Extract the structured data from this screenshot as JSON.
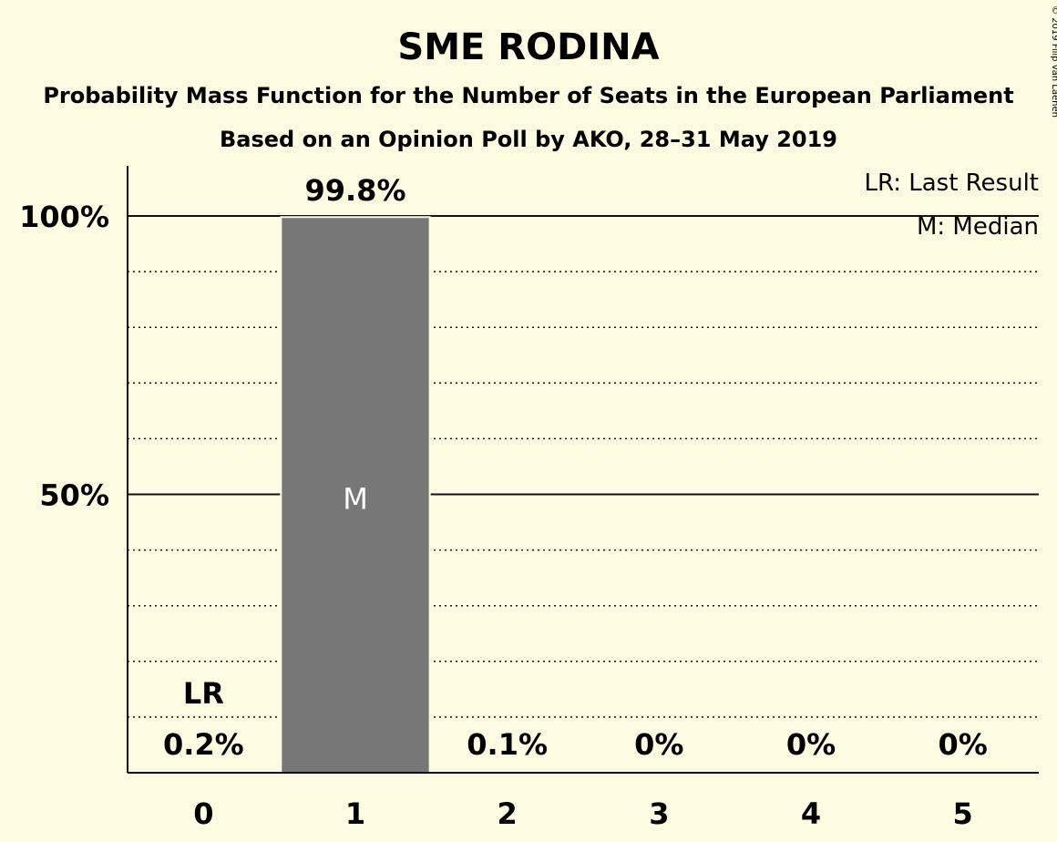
{
  "chart_data": {
    "type": "bar",
    "title": "SME RODINA",
    "subtitle": "Probability Mass Function for the Number of Seats in the European Parliament",
    "subtitle2": "Based on an Opinion Poll by AKO, 28–31 May 2019",
    "categories": [
      "0",
      "1",
      "2",
      "3",
      "4",
      "5"
    ],
    "values": [
      0.2,
      99.8,
      0.1,
      0,
      0,
      0
    ],
    "value_labels": [
      "0.2%",
      "99.8%",
      "0.1%",
      "0%",
      "0%",
      "0%"
    ],
    "ylim": [
      0,
      100
    ],
    "yticks": [
      {
        "value": 50,
        "label": "50%"
      },
      {
        "value": 100,
        "label": "100%"
      }
    ],
    "grid_minor_step": 10,
    "last_result_category": "0",
    "last_result_marker": "LR",
    "median_category": "1",
    "median_marker": "M",
    "legend": [
      "LR: Last Result",
      "M: Median"
    ],
    "legend_position": "top-right",
    "bar_color": "#777777",
    "background": "#fefbe3",
    "copyright": "© 2019 Filip van Laenen"
  }
}
